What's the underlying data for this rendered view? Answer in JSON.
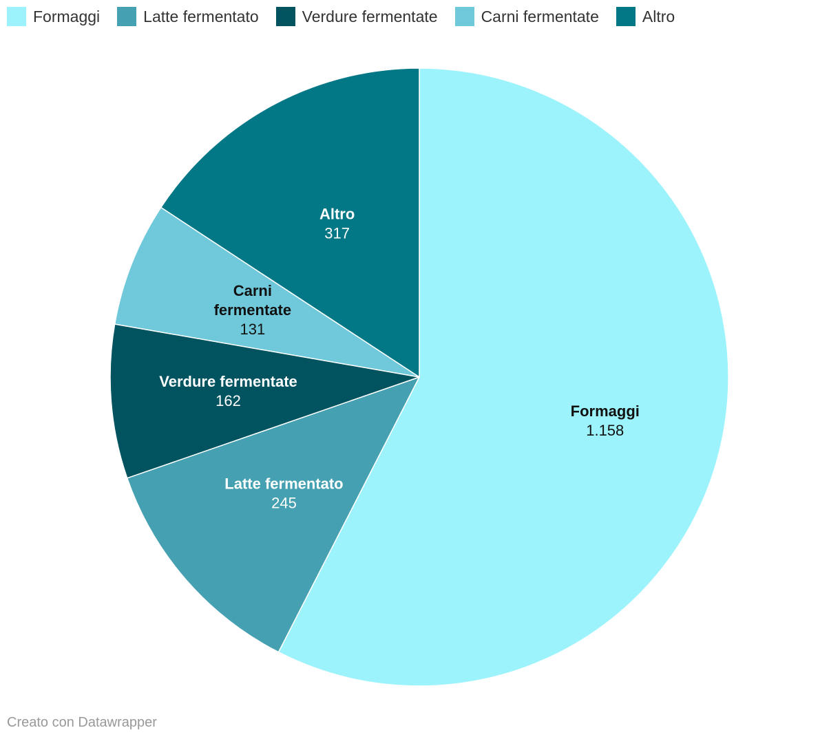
{
  "chart_data": {
    "type": "pie",
    "title": "",
    "categories": [
      "Formaggi",
      "Latte fermentato",
      "Verdure fermentate",
      "Carni fermentate",
      "Altro"
    ],
    "values": [
      1158,
      245,
      162,
      131,
      317
    ],
    "value_labels": [
      "1.158",
      "245",
      "162",
      "131",
      "317"
    ],
    "slice_label_lines": [
      [
        "Formaggi"
      ],
      [
        "Latte fermentato"
      ],
      [
        "Verdure fermentate"
      ],
      [
        "Carni",
        "fermentate"
      ],
      [
        "Altro"
      ]
    ],
    "colors": [
      "#9df3fb",
      "#45a1b1",
      "#01535f",
      "#6fc9db",
      "#027786"
    ],
    "label_colors": [
      "#111111",
      "#ffffff",
      "#ffffff",
      "#111111",
      "#ffffff"
    ],
    "legend_placement": "top-left",
    "start_angle_deg": 0,
    "direction": "clockwise"
  },
  "legend": {
    "items": [
      {
        "label": "Formaggi",
        "color": "#9df3fb"
      },
      {
        "label": "Latte fermentato",
        "color": "#45a1b1"
      },
      {
        "label": "Verdure fermentate",
        "color": "#01535f"
      },
      {
        "label": "Carni fermentate",
        "color": "#6fc9db"
      },
      {
        "label": "Altro",
        "color": "#027786"
      }
    ]
  },
  "footer": {
    "credit": "Creato con Datawrapper"
  }
}
